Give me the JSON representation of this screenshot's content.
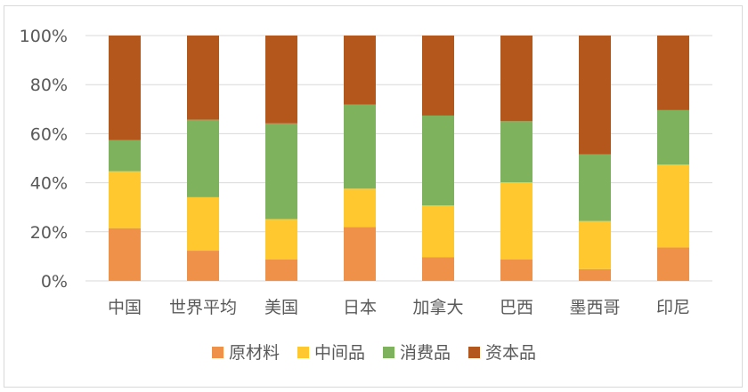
{
  "chart_data": {
    "type": "bar",
    "stacked": true,
    "percent": true,
    "categories": [
      "中国",
      "世界平均",
      "美国",
      "日本",
      "加拿大",
      "巴西",
      "墨西哥",
      "印尼"
    ],
    "series": [
      {
        "name": "原材料",
        "color": "#F0914A",
        "values": [
          21.5,
          12.3,
          8.8,
          22.0,
          9.6,
          8.7,
          4.8,
          13.6
        ]
      },
      {
        "name": "中间品",
        "color": "#FFC82E",
        "values": [
          23.2,
          21.8,
          16.4,
          15.6,
          21.2,
          31.5,
          19.6,
          33.8
        ]
      },
      {
        "name": "消费品",
        "color": "#7FB25C",
        "values": [
          12.7,
          31.6,
          39.0,
          34.3,
          36.6,
          24.9,
          27.2,
          22.2
        ]
      },
      {
        "name": "资本品",
        "color": "#B4571C",
        "values": [
          42.6,
          34.3,
          35.8,
          28.1,
          32.6,
          34.9,
          48.4,
          30.4
        ]
      }
    ],
    "ylim": [
      0,
      100
    ],
    "yticks": [
      "0%",
      "20%",
      "40%",
      "60%",
      "80%",
      "100%"
    ],
    "grid": true,
    "legend_position": "bottom",
    "title": "",
    "xlabel": "",
    "ylabel": ""
  }
}
